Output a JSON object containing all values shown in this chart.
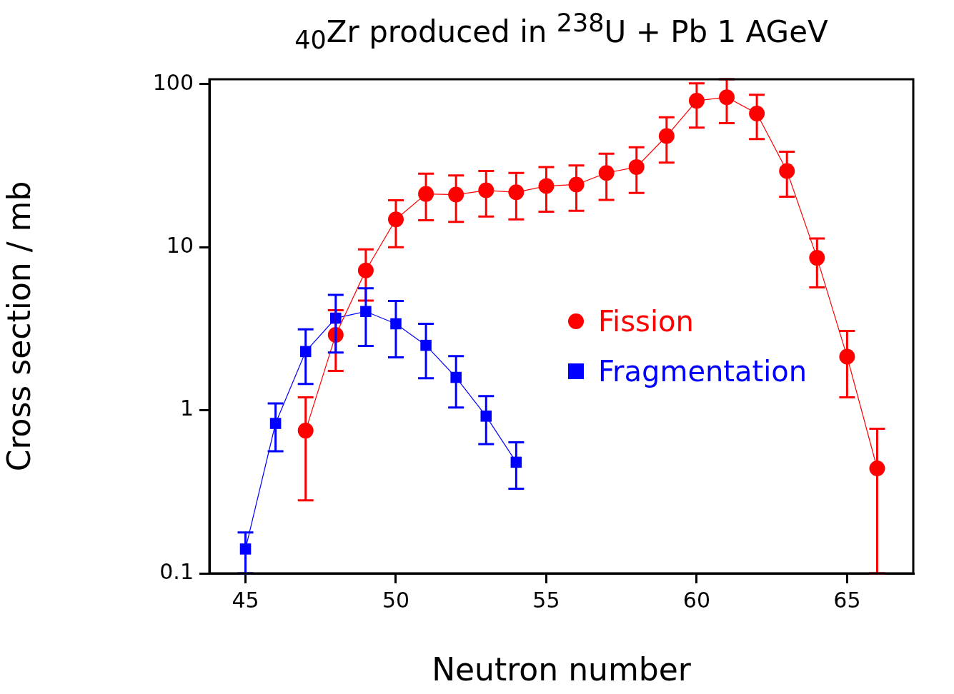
{
  "chart_data": {
    "type": "line",
    "title": "$_{40}$Zr produced in $^{238}$U + Pb 1 AGeV",
    "xlabel": "Neutron number",
    "ylabel": "Cross section / mb",
    "log": "y",
    "grid": false,
    "legend": "right",
    "line_style": "solid",
    "xlim": [
      43.8,
      67.2
    ],
    "xticks": [
      45,
      50,
      55,
      60,
      65
    ],
    "ylim": [
      0.1,
      107
    ],
    "yticks": [
      0.1,
      1,
      10,
      100
    ],
    "series": [
      {
        "name": "Fission",
        "color": "#ff0000",
        "marker": "circle",
        "x": [
          47,
          48,
          49,
          50,
          51,
          52,
          53,
          54,
          55,
          56,
          57,
          58,
          59,
          60,
          61,
          62,
          63,
          64,
          65,
          66
        ],
        "values": [
          0.75,
          2.9,
          7.2,
          14.8,
          21.2,
          21,
          22.3,
          21.7,
          23.7,
          24.2,
          28.5,
          31,
          48,
          79,
          83,
          66,
          29.3,
          8.6,
          2.13,
          0.44
        ],
        "errors": [
          [
            0.28,
            1.2
          ],
          [
            1.74,
            4.1
          ],
          [
            4.7,
            9.7
          ],
          [
            10,
            19.4
          ],
          [
            14.6,
            28.2
          ],
          [
            14.3,
            27.5
          ],
          [
            15.4,
            29.3
          ],
          [
            14.8,
            28.5
          ],
          [
            16.5,
            31
          ],
          [
            16.7,
            31.7
          ],
          [
            19.5,
            37.4
          ],
          [
            21.5,
            41
          ],
          [
            33,
            62.6
          ],
          [
            54,
            101
          ],
          [
            57.6,
            107
          ],
          [
            46,
            86
          ],
          [
            20.4,
            38.5
          ],
          [
            5.67,
            11.3
          ],
          [
            1.2,
            3.06
          ],
          [
            0.1,
            0.77
          ]
        ]
      },
      {
        "name": "Fragmentation",
        "color": "#0000ff",
        "marker": "square",
        "x": [
          45,
          46,
          47,
          48,
          49,
          50,
          51,
          52,
          53,
          54
        ],
        "values": [
          0.141,
          0.83,
          2.29,
          3.67,
          4.03,
          3.39,
          2.5,
          1.59,
          0.92,
          0.48
        ],
        "errors": [
          [
            0.1,
            0.178
          ],
          [
            0.56,
            1.1
          ],
          [
            1.45,
            3.13
          ],
          [
            2.26,
            5.1
          ],
          [
            2.48,
            5.6
          ],
          [
            2.11,
            4.68
          ],
          [
            1.57,
            3.39
          ],
          [
            1.04,
            2.15
          ],
          [
            0.62,
            1.22
          ],
          [
            0.33,
            0.635
          ]
        ]
      }
    ]
  }
}
